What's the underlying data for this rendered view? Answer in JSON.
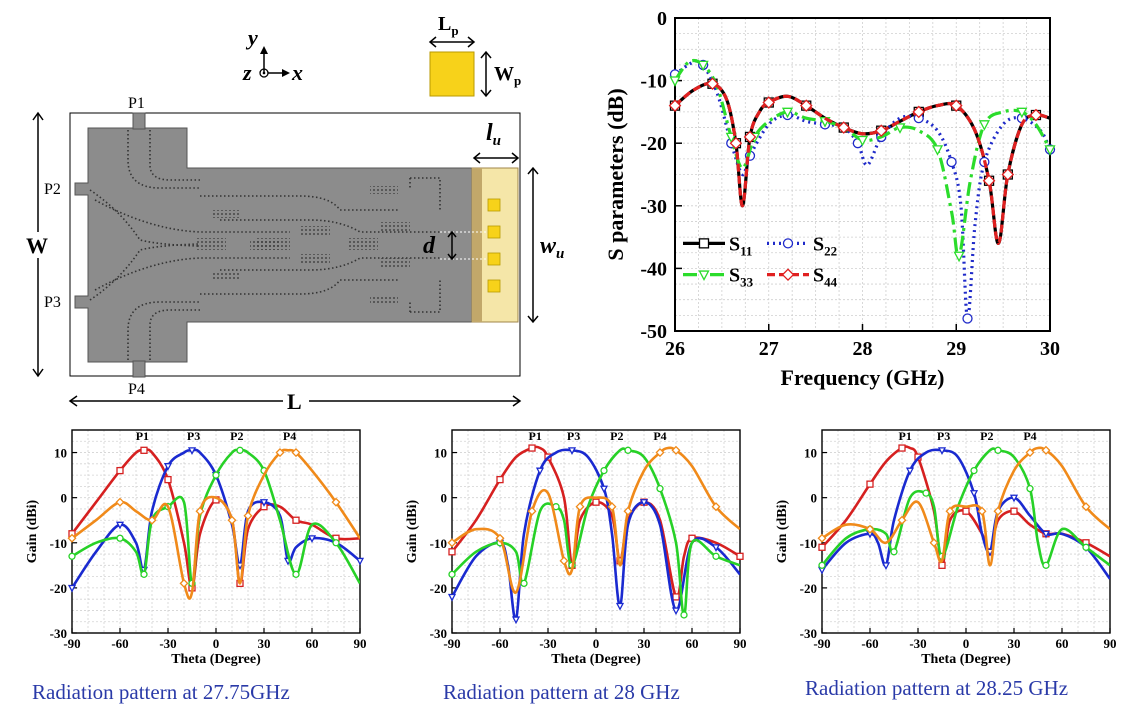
{
  "diagram": {
    "axis_y": "y",
    "axis_z": "z",
    "axis_x": "x",
    "patch_length": "L",
    "patch_length_sub": "p",
    "patch_width": "W",
    "patch_width_sub": "p",
    "port1": "P1",
    "port2": "P2",
    "port3": "P3",
    "port4": "P4",
    "total_width": "W",
    "total_length": "L",
    "unit_length": "l",
    "unit_length_sub": "u",
    "unit_width": "w",
    "unit_width_sub": "u",
    "spacing": "d",
    "colors": {
      "substrate": "#8c8c8c",
      "patch": "#f5e6a8",
      "element": "#f7d21a"
    }
  },
  "captions": {
    "c1": "Radiation pattern at 27.75GHz",
    "c2": "Radiation pattern at 28 GHz",
    "c3": "Radiation pattern at 28.25 GHz"
  },
  "chart_data": [
    {
      "type": "line",
      "xlabel": "Frequency (GHz)",
      "ylabel": "S parameters (dB)",
      "xlim": [
        26,
        30
      ],
      "ylim": [
        -50,
        0
      ],
      "xticks": [
        26,
        27,
        28,
        29,
        30
      ],
      "yticks": [
        0,
        -10,
        -20,
        -30,
        -40,
        -50
      ],
      "legend_position": "lower-left",
      "series": [
        {
          "name": "S",
          "sub": "11",
          "color": "#000000",
          "marker": "square",
          "dash": "solid",
          "x": [
            26,
            26.2,
            26.4,
            26.55,
            26.65,
            26.72,
            26.8,
            26.9,
            27.0,
            27.2,
            27.4,
            27.6,
            27.8,
            28.0,
            28.2,
            28.4,
            28.6,
            28.8,
            29.0,
            29.2,
            29.35,
            29.45,
            29.55,
            29.7,
            29.85,
            30
          ],
          "y": [
            -14,
            -11.5,
            -10.5,
            -13,
            -20,
            -30,
            -19,
            -15,
            -13.5,
            -12.5,
            -14,
            -16,
            -17.5,
            -18.5,
            -18,
            -16.5,
            -15,
            -14,
            -14,
            -18,
            -26,
            -36,
            -25,
            -17,
            -15.5,
            -16
          ]
        },
        {
          "name": "S",
          "sub": "22",
          "color": "#1f2ac9",
          "marker": "circle",
          "dash": "dot",
          "x": [
            26,
            26.2,
            26.3,
            26.45,
            26.6,
            26.72,
            26.8,
            27.0,
            27.2,
            27.4,
            27.6,
            27.8,
            27.95,
            28.05,
            28.2,
            28.4,
            28.6,
            28.8,
            28.95,
            29.05,
            29.12,
            29.2,
            29.3,
            29.5,
            29.7,
            29.9,
            30
          ],
          "y": [
            -9,
            -7,
            -7.5,
            -12,
            -20,
            -25,
            -22,
            -17,
            -15.5,
            -16.5,
            -17,
            -17.5,
            -20,
            -23.5,
            -19,
            -16,
            -16,
            -18,
            -23,
            -30,
            -48,
            -33,
            -23,
            -17,
            -16,
            -18,
            -21
          ]
        },
        {
          "name": "S",
          "sub": "33",
          "color": "#2bdc2b",
          "marker": "triangle",
          "dash": "dashdot",
          "x": [
            26,
            26.15,
            26.3,
            26.45,
            26.6,
            26.72,
            26.85,
            27.0,
            27.2,
            27.4,
            27.6,
            27.8,
            28.0,
            28.2,
            28.4,
            28.6,
            28.8,
            28.95,
            29.03,
            29.15,
            29.3,
            29.5,
            29.7,
            29.85,
            30
          ],
          "y": [
            -10,
            -7,
            -7.5,
            -11,
            -19,
            -24,
            -19,
            -16.5,
            -15,
            -16,
            -16.5,
            -17.5,
            -19.5,
            -19,
            -17.5,
            -18,
            -21,
            -31,
            -38,
            -26,
            -17,
            -15,
            -15,
            -17,
            -21
          ]
        },
        {
          "name": "S",
          "sub": "44",
          "color": "#e02020",
          "marker": "diamond",
          "dash": "dash",
          "x": [
            26,
            26.2,
            26.4,
            26.55,
            26.65,
            26.72,
            26.8,
            26.9,
            27.0,
            27.2,
            27.4,
            27.6,
            27.8,
            28.0,
            28.2,
            28.4,
            28.6,
            28.8,
            29.0,
            29.2,
            29.35,
            29.45,
            29.55,
            29.7,
            29.85,
            30
          ],
          "y": [
            -14,
            -11.5,
            -10.5,
            -13,
            -20,
            -30,
            -19,
            -15,
            -13.5,
            -12.5,
            -14,
            -16,
            -17.5,
            -18.5,
            -18,
            -16.5,
            -15,
            -14,
            -14,
            -18,
            -26,
            -36,
            -25,
            -17,
            -15.5,
            -16
          ]
        }
      ]
    },
    {
      "type": "line",
      "xlabel": "Theta (Degree)",
      "ylabel": "Gain (dBi)",
      "xlim": [
        -90,
        90
      ],
      "ylim": [
        -30,
        15
      ],
      "xticks": [
        -90,
        -60,
        -30,
        0,
        30,
        60,
        90
      ],
      "yticks": [
        10,
        0,
        -10,
        -20,
        -30
      ],
      "port_labels": [
        {
          "text": "P1",
          "theta": -46
        },
        {
          "text": "P3",
          "theta": -14
        },
        {
          "text": "P2",
          "theta": 13
        },
        {
          "text": "P4",
          "theta": 46
        }
      ],
      "series": [
        {
          "name": "P1",
          "color": "#d62020",
          "marker": "square",
          "x": [
            -90,
            -75,
            -60,
            -50,
            -45,
            -40,
            -30,
            -20,
            -15,
            -10,
            0,
            10,
            15,
            20,
            30,
            40,
            50,
            60,
            75,
            90
          ],
          "y": [
            -8,
            -1,
            6,
            10,
            10.5,
            10,
            4,
            -10,
            -20,
            -8,
            -0.5,
            -5,
            -19,
            -7,
            -2,
            -2,
            -5,
            -6,
            -9,
            -9
          ]
        },
        {
          "name": "P3",
          "color": "#1a2ad0",
          "marker": "triangle",
          "x": [
            -90,
            -75,
            -60,
            -50,
            -45,
            -40,
            -30,
            -20,
            -15,
            -10,
            0,
            10,
            15,
            20,
            30,
            40,
            45,
            50,
            60,
            75,
            90
          ],
          "y": [
            -20,
            -12,
            -6,
            -10,
            -16,
            -3,
            7,
            10,
            10.5,
            10,
            5,
            -6,
            -15,
            -3,
            -1,
            -4,
            -14,
            -11,
            -9,
            -10,
            -14
          ]
        },
        {
          "name": "P2",
          "color": "#27d127",
          "marker": "circle",
          "x": [
            -90,
            -75,
            -60,
            -50,
            -45,
            -40,
            -30,
            -20,
            -15,
            -10,
            0,
            10,
            15,
            20,
            30,
            40,
            50,
            60,
            75,
            90
          ],
          "y": [
            -13,
            -10,
            -9,
            -12,
            -17,
            -5,
            -2,
            -1,
            -19,
            -4,
            5,
            10,
            10.5,
            10,
            6,
            -5,
            -17,
            -6,
            -10,
            -19
          ]
        },
        {
          "name": "P4",
          "color": "#f08a1a",
          "marker": "diamond",
          "x": [
            -90,
            -75,
            -60,
            -50,
            -40,
            -30,
            -20,
            -15,
            -10,
            0,
            10,
            15,
            20,
            30,
            40,
            45,
            50,
            60,
            75,
            90
          ],
          "y": [
            -9,
            -5,
            -1,
            -3,
            -5,
            -2,
            -19,
            -21,
            -3,
            0,
            -5,
            -19,
            -4,
            5,
            10,
            10.5,
            10,
            6,
            -1,
            -9
          ]
        }
      ]
    },
    {
      "type": "line",
      "xlabel": "Theta (Degree)",
      "ylabel": "Gain (dBi)",
      "xlim": [
        -90,
        90
      ],
      "ylim": [
        -30,
        15
      ],
      "xticks": [
        -90,
        -60,
        -30,
        0,
        30,
        60,
        90
      ],
      "yticks": [
        10,
        0,
        -10,
        -20,
        -30
      ],
      "port_labels": [
        {
          "text": "P1",
          "theta": -38
        },
        {
          "text": "P3",
          "theta": -14
        },
        {
          "text": "P2",
          "theta": 13
        },
        {
          "text": "P4",
          "theta": 40
        }
      ],
      "series": [
        {
          "name": "P1",
          "color": "#d62020",
          "marker": "square",
          "x": [
            -90,
            -75,
            -60,
            -50,
            -40,
            -35,
            -30,
            -20,
            -15,
            -10,
            0,
            10,
            15,
            20,
            30,
            40,
            50,
            55,
            60,
            75,
            90
          ],
          "y": [
            -12,
            -5,
            4,
            9,
            11,
            11,
            9,
            0,
            -15,
            -5,
            -1,
            -4,
            -14,
            -5,
            -1,
            -5,
            -22,
            -13,
            -9,
            -10,
            -13
          ]
        },
        {
          "name": "P3",
          "color": "#1a2ad0",
          "marker": "triangle",
          "x": [
            -90,
            -75,
            -60,
            -55,
            -50,
            -45,
            -35,
            -25,
            -15,
            -5,
            5,
            10,
            15,
            20,
            30,
            40,
            50,
            60,
            75,
            90
          ],
          "y": [
            -22,
            -13,
            -10,
            -15,
            -27,
            -8,
            6,
            10,
            10.5,
            9,
            2,
            -8,
            -24,
            -6,
            -1,
            -6,
            -25,
            -10,
            -11,
            -17
          ]
        },
        {
          "name": "P2",
          "color": "#27d127",
          "marker": "circle",
          "x": [
            -90,
            -75,
            -60,
            -50,
            -45,
            -35,
            -25,
            -20,
            -15,
            -5,
            5,
            15,
            20,
            30,
            40,
            50,
            55,
            60,
            75,
            90
          ],
          "y": [
            -17,
            -12,
            -10,
            -12,
            -19,
            -3,
            -2,
            -5,
            -15,
            -2,
            6,
            10.5,
            10.5,
            9,
            2,
            -10,
            -26,
            -10,
            -13,
            -15
          ]
        },
        {
          "name": "P4",
          "color": "#f08a1a",
          "marker": "diamond",
          "x": [
            -90,
            -75,
            -60,
            -50,
            -40,
            -30,
            -20,
            -15,
            -10,
            0,
            10,
            15,
            20,
            30,
            40,
            45,
            50,
            60,
            75,
            90
          ],
          "y": [
            -10,
            -7,
            -9,
            -21,
            -3,
            1,
            -14,
            -16,
            -2,
            0,
            -2,
            -15,
            -3,
            6,
            10,
            11,
            10.5,
            7,
            -2,
            -7
          ]
        }
      ]
    },
    {
      "type": "line",
      "xlabel": "Theta (Degree)",
      "ylabel": "Gain (dBi)",
      "xlim": [
        -90,
        90
      ],
      "ylim": [
        -30,
        15
      ],
      "xticks": [
        -90,
        -60,
        -30,
        0,
        30,
        60,
        90
      ],
      "yticks": [
        10,
        0,
        -10,
        -20,
        -30
      ],
      "port_labels": [
        {
          "text": "P1",
          "theta": -38
        },
        {
          "text": "P3",
          "theta": -14
        },
        {
          "text": "P2",
          "theta": 13
        },
        {
          "text": "P4",
          "theta": 40
        }
      ],
      "series": [
        {
          "name": "P1",
          "color": "#d62020",
          "marker": "square",
          "x": [
            -90,
            -75,
            -60,
            -50,
            -40,
            -35,
            -30,
            -20,
            -15,
            -10,
            0,
            10,
            15,
            20,
            30,
            40,
            50,
            60,
            75,
            90
          ],
          "y": [
            -11,
            -5,
            3,
            8,
            11,
            11,
            9,
            -3,
            -15,
            -5,
            -3,
            -8,
            -12,
            -5,
            -3,
            -6,
            -8,
            -8,
            -10,
            -13
          ]
        },
        {
          "name": "P3",
          "color": "#1a2ad0",
          "marker": "triangle",
          "x": [
            -90,
            -75,
            -60,
            -55,
            -50,
            -45,
            -35,
            -25,
            -15,
            -5,
            5,
            10,
            15,
            20,
            30,
            40,
            50,
            60,
            75,
            90
          ],
          "y": [
            -16,
            -10,
            -8,
            -10,
            -15,
            -5,
            6,
            10,
            10.5,
            9,
            1,
            -8,
            -12,
            -3,
            0,
            -4,
            -8,
            -8,
            -11,
            -18
          ]
        },
        {
          "name": "P2",
          "color": "#27d127",
          "marker": "circle",
          "x": [
            -90,
            -75,
            -60,
            -50,
            -45,
            -35,
            -25,
            -20,
            -15,
            -5,
            5,
            15,
            20,
            30,
            40,
            45,
            50,
            60,
            75,
            90
          ],
          "y": [
            -15,
            -9,
            -7,
            -8,
            -12,
            0,
            1,
            -2,
            -13,
            -2,
            6,
            10.5,
            10.5,
            9,
            2,
            -10,
            -15,
            -7,
            -11,
            -15
          ]
        },
        {
          "name": "P4",
          "color": "#f08a1a",
          "marker": "diamond",
          "x": [
            -90,
            -75,
            -60,
            -50,
            -40,
            -30,
            -20,
            -15,
            -10,
            0,
            10,
            15,
            20,
            30,
            40,
            45,
            50,
            60,
            75,
            90
          ],
          "y": [
            -9,
            -6,
            -7,
            -10,
            -5,
            -1,
            -10,
            -14,
            -3,
            -2,
            -3,
            -15,
            -3,
            6,
            10,
            11,
            10.5,
            7,
            -2,
            -7
          ]
        }
      ]
    }
  ]
}
